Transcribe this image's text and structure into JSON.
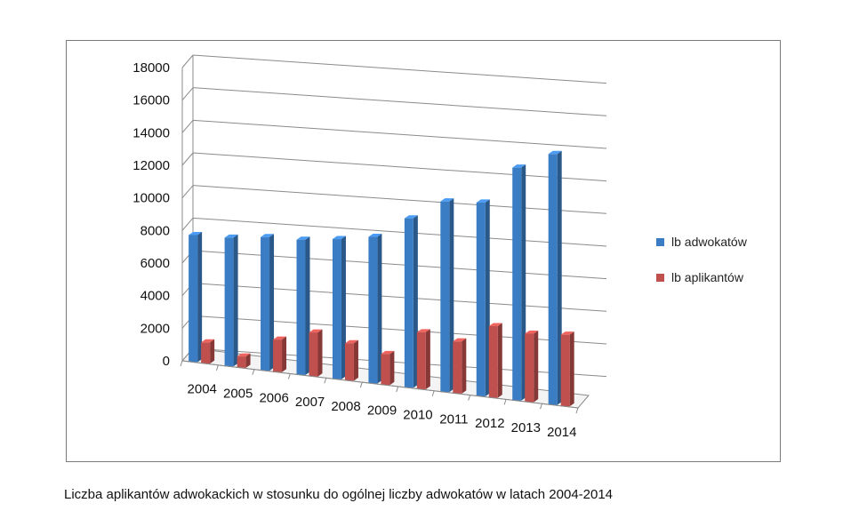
{
  "chart_data": {
    "type": "bar",
    "categories": [
      "2004",
      "2005",
      "2006",
      "2007",
      "2008",
      "2009",
      "2010",
      "2011",
      "2012",
      "2013",
      "2014"
    ],
    "series": [
      {
        "name": "lb adwokatów",
        "color": "#3b7dc4",
        "values": [
          7800,
          7900,
          8200,
          8300,
          8600,
          9000,
          10400,
          11700,
          11900,
          14300,
          15400
        ]
      },
      {
        "name": "lb aplikantów",
        "color": "#c0504d",
        "values": [
          1300,
          700,
          2000,
          2700,
          2300,
          1900,
          3500,
          3200,
          4400,
          4200,
          4400
        ]
      }
    ],
    "y_ticks": [
      "0",
      "2000",
      "4000",
      "6000",
      "8000",
      "10000",
      "12000",
      "14000",
      "16000",
      "18000"
    ],
    "ylim": [
      0,
      18000
    ],
    "grid": true,
    "legend_position": "right",
    "style": "3d-clustered-column"
  },
  "caption": "Liczba aplikantów adwokackich w stosunku do ogólnej liczby adwokatów w latach 2004-2014"
}
